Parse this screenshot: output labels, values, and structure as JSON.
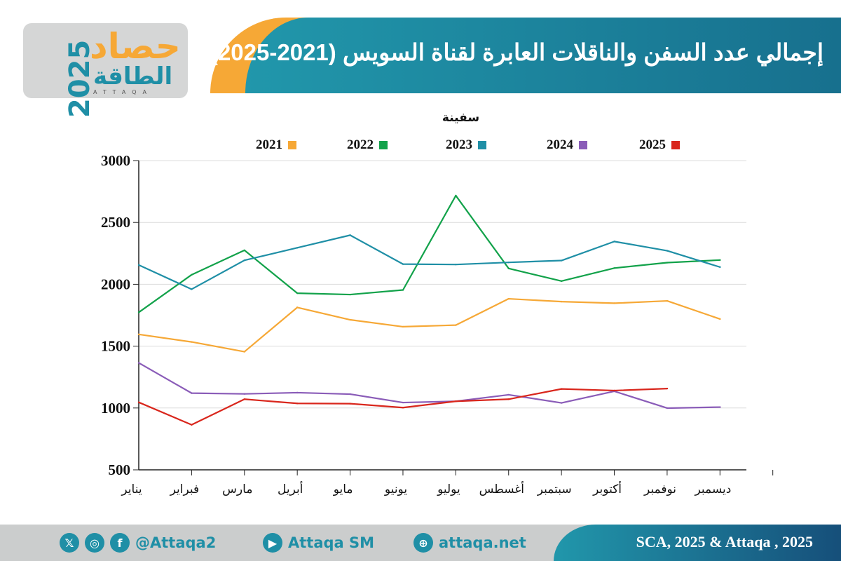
{
  "logo": {
    "year": "2025",
    "ar_line1": "حصاد",
    "ar_line2": "الطاقة",
    "en": "ATTAQA"
  },
  "header": {
    "title": "إجمالي عدد السفن والناقلات العابرة لقناة السويس (2021-2025)"
  },
  "footer": {
    "twitter_icon": "x-icon",
    "instagram_icon": "instagram-icon",
    "facebook_icon": "facebook-icon",
    "handle": "@Attaqa2",
    "youtube_icon": "youtube-icon",
    "youtube": "Attaqa SM",
    "web_icon": "globe-icon",
    "website": "attaqa.net",
    "credit": "SCA, 2025 & Attaqa , 2025"
  },
  "chart_data": {
    "type": "line",
    "ylabel": "سفينة",
    "ylim": [
      500,
      3000
    ],
    "yticks": [
      "3000",
      "2500",
      "2000",
      "1500",
      "1000",
      "500"
    ],
    "grid": true,
    "legend_position": "top",
    "categories": [
      "يناير",
      "فبراير",
      "مارس",
      "أبريل",
      "مايو",
      "يونيو",
      "يوليو",
      "أغسطس",
      "سبتمبر",
      "أكتوبر",
      "نوفمبر",
      "ديسمبر"
    ],
    "series": [
      {
        "name": "2021",
        "color": "#f6a836",
        "values": [
          1595,
          1534,
          1455,
          1813,
          1713,
          1657,
          1670,
          1883,
          1860,
          1847,
          1866,
          1719
        ]
      },
      {
        "name": "2022",
        "color": "#12a24a",
        "values": [
          1773,
          2077,
          2275,
          1928,
          1917,
          1954,
          2717,
          2128,
          2026,
          2131,
          2175,
          2196
        ]
      },
      {
        "name": "2023",
        "color": "#1f8fa6",
        "values": [
          2156,
          1960,
          2194,
          2295,
          2397,
          2163,
          2160,
          2177,
          2192,
          2346,
          2271,
          2139
        ]
      },
      {
        "name": "2024",
        "color": "#8a5cb8",
        "values": [
          1365,
          1120,
          1114,
          1124,
          1112,
          1044,
          1054,
          1107,
          1041,
          1135,
          999,
          1007
        ]
      },
      {
        "name": "2025",
        "color": "#d9261c",
        "values": [
          1046,
          864,
          1071,
          1037,
          1035,
          1003,
          1054,
          1071,
          1154,
          1141,
          1157,
          null
        ]
      }
    ]
  }
}
